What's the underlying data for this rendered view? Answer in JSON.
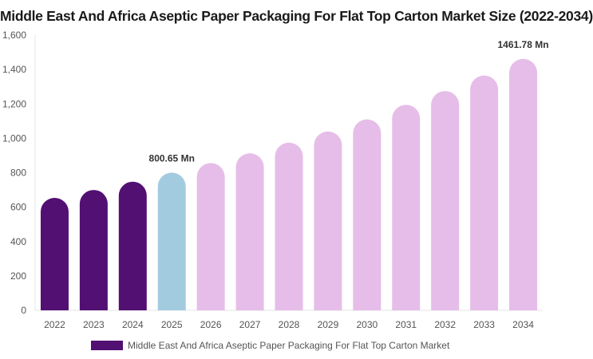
{
  "chart_data": {
    "type": "bar",
    "title": "Middle East And Africa Aseptic Paper Packaging For Flat Top Carton Market Size (2022-2034)",
    "categories": [
      "2022",
      "2023",
      "2024",
      "2025",
      "2026",
      "2027",
      "2028",
      "2029",
      "2030",
      "2031",
      "2032",
      "2033",
      "2034"
    ],
    "series": [
      {
        "name": "Middle East And Africa Aseptic Paper Packaging For Flat Top Carton Market",
        "values": [
          654,
          700,
          748,
          800.65,
          856,
          913,
          975,
          1040,
          1110,
          1195,
          1275,
          1365,
          1461.78
        ]
      }
    ],
    "ylim": [
      0,
      1600
    ],
    "yticks": [
      "0",
      "200",
      "400",
      "600",
      "800",
      "1,000",
      "1,200",
      "1,400",
      "1,600"
    ],
    "annotations": [
      {
        "category": "2025",
        "text": "800.65 Mn"
      },
      {
        "category": "2034",
        "text": "1461.78 Mn"
      }
    ],
    "colors": {
      "historical": "#521073",
      "current": "#a3cbdf",
      "forecast": "#e6bde8",
      "axis_text": "#555555",
      "label_text": "#333333"
    },
    "bar_color_roles": [
      "historical",
      "historical",
      "historical",
      "current",
      "forecast",
      "forecast",
      "forecast",
      "forecast",
      "forecast",
      "forecast",
      "forecast",
      "forecast",
      "forecast"
    ],
    "legend": {
      "position": "bottom",
      "label": "Middle East And Africa Aseptic Paper Packaging For Flat Top Carton Market"
    },
    "grid": false
  }
}
